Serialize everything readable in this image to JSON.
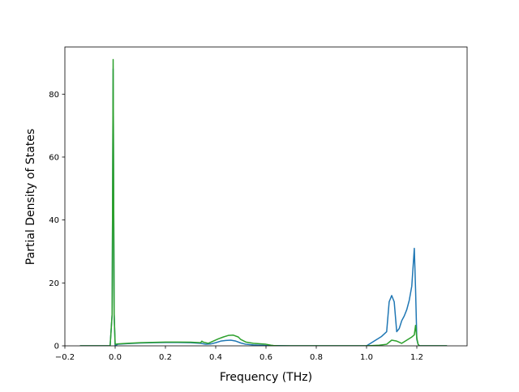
{
  "chart_data": {
    "type": "line",
    "title": "",
    "xlabel": "Frequency (THz)",
    "ylabel": "Partial Density of States",
    "xlim": [
      -0.2,
      1.4
    ],
    "ylim": [
      0,
      95
    ],
    "xticks": [
      -0.2,
      0.0,
      0.2,
      0.4,
      0.6,
      0.8,
      1.0,
      1.2
    ],
    "xtick_labels": [
      "−0.2",
      "0.0",
      "0.2",
      "0.4",
      "0.6",
      "0.8",
      "1.0",
      "1.2"
    ],
    "yticks": [
      0,
      20,
      40,
      60,
      80
    ],
    "ytick_labels": [
      "0",
      "20",
      "40",
      "60",
      "80"
    ],
    "grid": false,
    "legend": "none",
    "series": [
      {
        "color": "#1f77b4",
        "x": [
          -0.14,
          -0.02,
          -0.012,
          -0.008,
          -0.004,
          0.0,
          0.01,
          0.05,
          0.1,
          0.15,
          0.2,
          0.25,
          0.3,
          0.34,
          0.36,
          0.38,
          0.4,
          0.42,
          0.44,
          0.46,
          0.48,
          0.5,
          0.52,
          0.55,
          0.6,
          0.65,
          0.7,
          0.8,
          0.9,
          1.0,
          1.02,
          1.04,
          1.06,
          1.08,
          1.09,
          1.1,
          1.11,
          1.12,
          1.13,
          1.14,
          1.15,
          1.16,
          1.17,
          1.18,
          1.19,
          1.195,
          1.2,
          1.205,
          1.21,
          1.23,
          1.26,
          1.3,
          1.32
        ],
        "y": [
          0,
          0,
          10,
          88,
          10,
          0,
          0.5,
          0.7,
          0.9,
          1.0,
          1.05,
          1.05,
          1.0,
          0.8,
          0.5,
          0.6,
          1.0,
          1.5,
          1.7,
          1.8,
          1.5,
          0.9,
          0.5,
          0.3,
          0.1,
          0.05,
          0,
          0,
          0,
          0,
          1.0,
          2.0,
          3.0,
          4.5,
          14.0,
          16.0,
          14.0,
          4.5,
          5.5,
          8.0,
          9.5,
          11.5,
          14.5,
          19.0,
          31.0,
          18.0,
          2.0,
          0.5,
          0,
          0,
          0,
          0,
          0
        ]
      },
      {
        "color": "#2ca02c",
        "x": [
          -0.14,
          -0.02,
          -0.012,
          -0.008,
          -0.004,
          0.0,
          0.01,
          0.05,
          0.1,
          0.15,
          0.2,
          0.25,
          0.3,
          0.34,
          0.345,
          0.35,
          0.37,
          0.39,
          0.41,
          0.43,
          0.45,
          0.47,
          0.49,
          0.5,
          0.52,
          0.55,
          0.6,
          0.62,
          0.63,
          0.65,
          0.7,
          0.8,
          0.9,
          1.0,
          1.05,
          1.08,
          1.1,
          1.12,
          1.14,
          1.16,
          1.18,
          1.19,
          1.195,
          1.2,
          1.205,
          1.21,
          1.25,
          1.3,
          1.32
        ],
        "y": [
          0,
          0,
          10,
          91,
          10,
          0.5,
          0.6,
          0.8,
          1.0,
          1.1,
          1.2,
          1.2,
          1.15,
          1.0,
          1.5,
          1.2,
          0.8,
          1.5,
          2.2,
          2.8,
          3.3,
          3.4,
          2.8,
          2.0,
          1.2,
          0.8,
          0.5,
          0.2,
          0.1,
          0,
          0,
          0,
          0,
          0,
          0.2,
          0.5,
          1.8,
          1.5,
          0.8,
          1.8,
          2.8,
          3.5,
          6.5,
          2.5,
          0.5,
          0,
          0,
          0,
          0
        ]
      }
    ]
  }
}
